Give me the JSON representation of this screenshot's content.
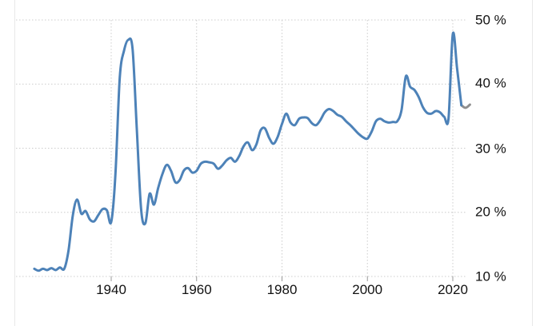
{
  "chart": {
    "y_axis_labels": [
      "50 %",
      "40 %",
      "30 %",
      "20 %",
      "10 %"
    ],
    "x_axis_labels": [
      "1940",
      "1960",
      "1980",
      "2000",
      "2020"
    ],
    "background_color": "#ffffff",
    "gridline_color": "#cccccc",
    "border_color": "#e8e8e8",
    "tick_color": "#999999"
  },
  "chart_data": {
    "type": "line",
    "title": "",
    "xlabel": "",
    "ylabel": "",
    "legend": "none",
    "grid": "dotted",
    "xlim": [
      1922,
      2025
    ],
    "ylim": [
      10,
      52
    ],
    "x_tick_values": [
      1940,
      1960,
      1980,
      2000,
      2020
    ],
    "x_tick_labels": [
      "1940",
      "1960",
      "1980",
      "2000",
      "2020"
    ],
    "y_tick_values": [
      50,
      40,
      30,
      20,
      10
    ],
    "y_tick_labels": [
      "50 %",
      "40 %",
      "30 %",
      "20 %",
      "10 %"
    ],
    "line_color": "#4d82b8",
    "tail_color": "#8f8f8f",
    "tail_start_year": 2022,
    "years": [
      1922,
      1923,
      1924,
      1925,
      1926,
      1927,
      1928,
      1929,
      1930,
      1931,
      1932,
      1933,
      1934,
      1935,
      1936,
      1937,
      1938,
      1939,
      1940,
      1941,
      1942,
      1943,
      1944,
      1945,
      1946,
      1947,
      1948,
      1949,
      1950,
      1951,
      1952,
      1953,
      1954,
      1955,
      1956,
      1957,
      1958,
      1959,
      1960,
      1961,
      1962,
      1963,
      1964,
      1965,
      1966,
      1967,
      1968,
      1969,
      1970,
      1971,
      1972,
      1973,
      1974,
      1975,
      1976,
      1977,
      1978,
      1979,
      1980,
      1981,
      1982,
      1983,
      1984,
      1985,
      1986,
      1987,
      1988,
      1989,
      1990,
      1991,
      1992,
      1993,
      1994,
      1995,
      1996,
      1997,
      1998,
      1999,
      2000,
      2001,
      2002,
      2003,
      2004,
      2005,
      2006,
      2007,
      2008,
      2009,
      2010,
      2011,
      2012,
      2013,
      2014,
      2015,
      2016,
      2017,
      2018,
      2019,
      2020,
      2021,
      2022,
      2023,
      2024
    ],
    "values": [
      11.2,
      10.9,
      11.2,
      11.0,
      11.3,
      11.0,
      11.4,
      11.2,
      14.0,
      19.5,
      22.0,
      19.8,
      20.2,
      18.9,
      18.6,
      19.6,
      20.5,
      20.3,
      18.5,
      26.0,
      41.0,
      45.2,
      46.9,
      45.5,
      33.0,
      20.5,
      18.3,
      22.9,
      21.2,
      23.8,
      26.0,
      27.4,
      26.5,
      24.7,
      25.0,
      26.5,
      26.9,
      26.2,
      26.5,
      27.6,
      27.9,
      27.8,
      27.6,
      26.8,
      27.3,
      28.1,
      28.5,
      27.9,
      28.8,
      30.3,
      30.9,
      29.7,
      30.6,
      32.8,
      33.1,
      31.6,
      30.7,
      31.8,
      33.8,
      35.4,
      34.0,
      33.6,
      34.6,
      34.8,
      34.7,
      33.9,
      33.6,
      34.4,
      35.6,
      36.1,
      35.8,
      35.2,
      34.9,
      34.2,
      33.6,
      32.9,
      32.2,
      31.7,
      31.5,
      32.6,
      34.2,
      34.6,
      34.2,
      34.0,
      34.1,
      34.2,
      36.0,
      41.2,
      39.6,
      39.1,
      38.0,
      36.4,
      35.5,
      35.4,
      35.8,
      35.6,
      34.9,
      34.7,
      47.8,
      42.5,
      36.7,
      36.3,
      36.8
    ]
  }
}
